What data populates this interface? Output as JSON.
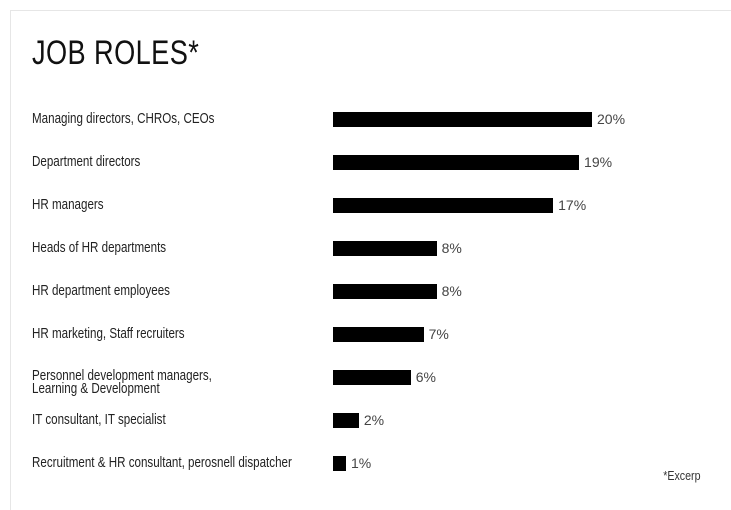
{
  "chart_data": {
    "type": "bar",
    "orientation": "horizontal",
    "title": "JOB ROLES*",
    "categories": [
      "Managing directors, CHROs, CEOs",
      "Department directors",
      "HR managers",
      "Heads of HR departments",
      "HR department employees",
      "HR marketing, Staff recruiters",
      "Personnel development managers,\nLearning & Development",
      "IT consultant, IT specialist",
      "Recruitment & HR consultant, perosnell dispatcher"
    ],
    "values": [
      20,
      19,
      17,
      8,
      8,
      7,
      6,
      2,
      1
    ],
    "value_labels": [
      "20%",
      "19%",
      "17%",
      "8%",
      "8%",
      "7%",
      "6%",
      "2%",
      "1%"
    ],
    "color": "#000000",
    "note": "*Excerp"
  }
}
